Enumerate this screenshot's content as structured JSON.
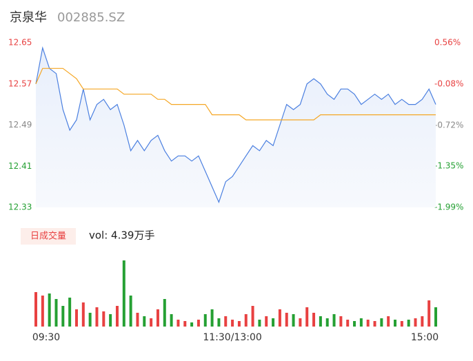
{
  "chart_data": {
    "type": "line",
    "title": "京泉华",
    "subtitle": "002885.SZ",
    "volume_title": "日成交量",
    "volume_label": "vol: 4.39万手",
    "categories": [
      "09:30",
      null,
      null,
      null,
      null,
      null,
      null,
      null,
      null,
      null,
      null,
      null,
      null,
      null,
      null,
      null,
      null,
      null,
      null,
      null,
      null,
      null,
      null,
      null,
      null,
      null,
      null,
      null,
      null,
      "11:30/13:00",
      null,
      null,
      null,
      null,
      null,
      null,
      null,
      null,
      null,
      null,
      null,
      null,
      null,
      null,
      null,
      null,
      null,
      null,
      null,
      null,
      null,
      null,
      null,
      null,
      null,
      null,
      null,
      null,
      null,
      "15:00"
    ],
    "series": [
      {
        "name": "price",
        "color": "#4a7fe0",
        "values": [
          12.57,
          12.64,
          12.6,
          12.59,
          12.52,
          12.48,
          12.5,
          12.56,
          12.5,
          12.53,
          12.54,
          12.52,
          12.53,
          12.49,
          12.44,
          12.46,
          12.44,
          12.46,
          12.47,
          12.44,
          12.42,
          12.43,
          12.43,
          12.42,
          12.43,
          12.4,
          12.37,
          12.34,
          12.38,
          12.39,
          12.41,
          12.43,
          12.45,
          12.44,
          12.46,
          12.45,
          12.49,
          12.53,
          12.52,
          12.53,
          12.57,
          12.58,
          12.57,
          12.55,
          12.54,
          12.56,
          12.56,
          12.55,
          12.53,
          12.54,
          12.55,
          12.54,
          12.55,
          12.53,
          12.54,
          12.53,
          12.53,
          12.54,
          12.56,
          12.53
        ]
      },
      {
        "name": "average",
        "color": "#f5a623",
        "values": [
          12.57,
          12.6,
          12.6,
          12.6,
          12.6,
          12.59,
          12.58,
          12.56,
          12.56,
          12.56,
          12.56,
          12.56,
          12.56,
          12.55,
          12.55,
          12.55,
          12.55,
          12.55,
          12.54,
          12.54,
          12.53,
          12.53,
          12.53,
          12.53,
          12.53,
          12.53,
          12.51,
          12.51,
          12.51,
          12.51,
          12.51,
          12.5,
          12.5,
          12.5,
          12.5,
          12.5,
          12.5,
          12.5,
          12.5,
          12.5,
          12.5,
          12.5,
          12.51,
          12.51,
          12.51,
          12.51,
          12.51,
          12.51,
          12.51,
          12.51,
          12.51,
          12.51,
          12.51,
          12.51,
          12.51,
          12.51,
          12.51,
          12.51,
          12.51,
          12.51
        ]
      }
    ],
    "volume": [
      50,
      45,
      48,
      40,
      30,
      42,
      25,
      35,
      20,
      28,
      22,
      18,
      30,
      96,
      45,
      20,
      15,
      12,
      25,
      40,
      18,
      10,
      8,
      6,
      10,
      18,
      25,
      12,
      15,
      10,
      8,
      18,
      30,
      10,
      15,
      12,
      25,
      20,
      18,
      12,
      28,
      20,
      15,
      12,
      18,
      15,
      10,
      8,
      12,
      10,
      8,
      12,
      15,
      10,
      8,
      10,
      12,
      15,
      38,
      28
    ],
    "up_color": "#e84141",
    "down_color": "#25a033",
    "ylim": [
      12.33,
      12.65
    ],
    "yticks": [
      12.33,
      12.41,
      12.49,
      12.57,
      12.65
    ],
    "ytick_colors": [
      "#25a033",
      "#25a033",
      "#888888",
      "#e84141",
      "#e84141"
    ],
    "y2lim": [
      -1.99,
      0.56
    ],
    "y2ticks": [
      {
        "value": -1.99,
        "label": "-1.99%"
      },
      {
        "value": -1.35,
        "label": "-1.35%"
      },
      {
        "value": -0.72,
        "label": "-0.72%"
      },
      {
        "value": -0.08,
        "label": "-0.08%"
      },
      {
        "value": 0.56,
        "label": "0.56%"
      }
    ]
  }
}
